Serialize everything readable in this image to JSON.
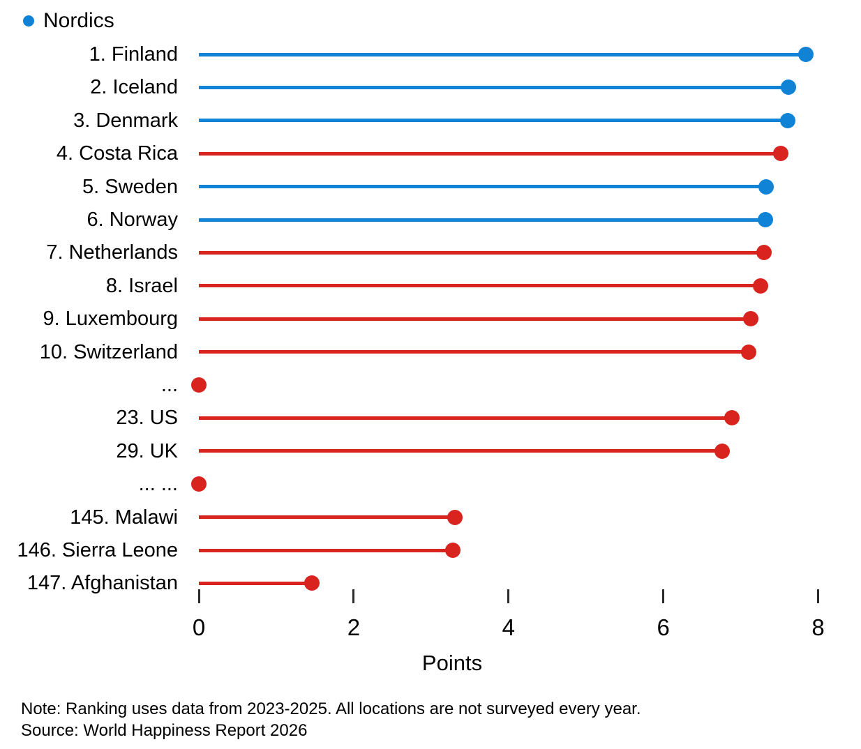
{
  "footer": {
    "note": "Note: Ranking uses data from 2023-2025. All locations are not surveyed every year.",
    "source": "Source: World Happiness Report 2026"
  },
  "chart_data": {
    "type": "lollipop",
    "title": "",
    "xlabel": "Points",
    "xlim": [
      0,
      8
    ],
    "xticks": [
      0,
      2,
      4,
      6,
      8
    ],
    "grid": false,
    "legend_position": "top-left",
    "legend": [
      {
        "label": "Nordics",
        "group": "nordics",
        "color": "#1083d6"
      }
    ],
    "colors": {
      "nordics": "#1083d6",
      "other": "#d8231f"
    },
    "rows": [
      {
        "label": "1. Finland",
        "group": "nordics",
        "value": 7.84,
        "ellipsis": false
      },
      {
        "label": "2. Iceland",
        "group": "nordics",
        "value": 7.62,
        "ellipsis": false
      },
      {
        "label": "3. Denmark",
        "group": "nordics",
        "value": 7.61,
        "ellipsis": false
      },
      {
        "label": "4. Costa Rica",
        "group": "other",
        "value": 7.52,
        "ellipsis": false
      },
      {
        "label": "5. Sweden",
        "group": "nordics",
        "value": 7.33,
        "ellipsis": false
      },
      {
        "label": "6. Norway",
        "group": "nordics",
        "value": 7.32,
        "ellipsis": false
      },
      {
        "label": "7. Netherlands",
        "group": "other",
        "value": 7.3,
        "ellipsis": false
      },
      {
        "label": "8. Israel",
        "group": "other",
        "value": 7.26,
        "ellipsis": false
      },
      {
        "label": "9. Luxembourg",
        "group": "other",
        "value": 7.13,
        "ellipsis": false
      },
      {
        "label": "10. Switzerland",
        "group": "other",
        "value": 7.1,
        "ellipsis": false
      },
      {
        "label": "...",
        "group": "other",
        "value": 0,
        "ellipsis": true
      },
      {
        "label": "23. US",
        "group": "other",
        "value": 6.89,
        "ellipsis": false
      },
      {
        "label": "29. UK",
        "group": "other",
        "value": 6.76,
        "ellipsis": false
      },
      {
        "label": "... ...",
        "group": "other",
        "value": 0,
        "ellipsis": true
      },
      {
        "label": "145. Malawi",
        "group": "other",
        "value": 3.31,
        "ellipsis": false
      },
      {
        "label": "146. Sierra Leone",
        "group": "other",
        "value": 3.28,
        "ellipsis": false
      },
      {
        "label": "147. Afghanistan",
        "group": "other",
        "value": 1.46,
        "ellipsis": false
      }
    ]
  }
}
